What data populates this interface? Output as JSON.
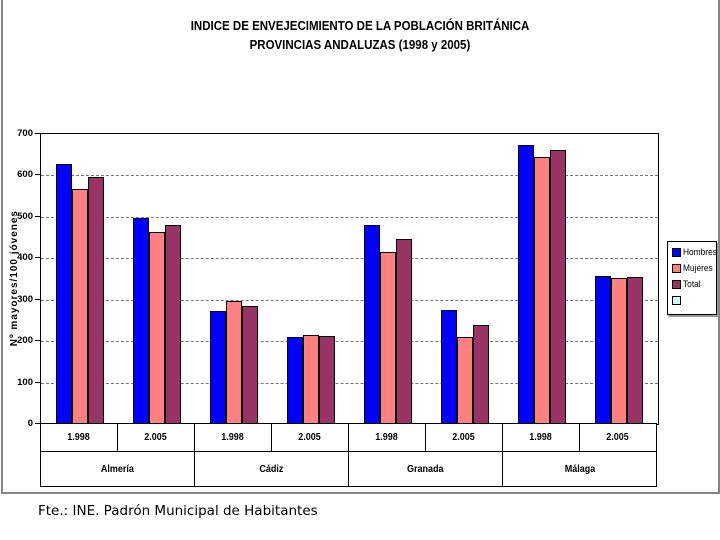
{
  "title": {
    "line1": "INDICE DE ENVEJECIMIENTO DE LA POBLACIÓN BRITÁNICA",
    "line2": "PROVINCIAS ANDALUZAS (1998 y 2005)"
  },
  "footer": {
    "text": "Fte.: INE. Padrón Municipal de Habitantes"
  },
  "legend": {
    "position": "right",
    "items": [
      {
        "label": "Hombres",
        "color": "#0000FF"
      },
      {
        "label": "Mujeres",
        "color": "#FF8080"
      },
      {
        "label": "Total",
        "color": "#993366"
      },
      {
        "label": "",
        "color": "#CCFFFF"
      }
    ]
  },
  "chart_data": {
    "type": "bar",
    "title": "INDICE DE ENVEJECIMIENTO DE LA POBLACIÓN BRITÁNICA PROVINCIAS ANDALUZAS (1998 y 2005)",
    "xlabel": "",
    "ylabel": "Nº  mayores/100 jóvenes",
    "ylim": [
      0,
      700
    ],
    "ytick_interval": 100,
    "grid": "horizontal-dashed",
    "provinces": [
      "Almería",
      "Cádiz",
      "Granada",
      "Málaga"
    ],
    "categories": [
      "1.998",
      "2.005",
      "1.998",
      "2.005",
      "1.998",
      "2.005",
      "1.998",
      "2.005"
    ],
    "series": [
      {
        "name": "Hombres",
        "color": "#0000FF",
        "values": [
          625,
          495,
          270,
          207,
          478,
          272,
          672,
          355
        ]
      },
      {
        "name": "Mujeres",
        "color": "#FF8080",
        "values": [
          565,
          460,
          295,
          212,
          412,
          207,
          641,
          351
        ]
      },
      {
        "name": "Total",
        "color": "#993366",
        "values": [
          595,
          478,
          283,
          210,
          443,
          237,
          658,
          353
        ]
      },
      {
        "name": "",
        "color": "#CCFFFF",
        "values": []
      }
    ]
  }
}
